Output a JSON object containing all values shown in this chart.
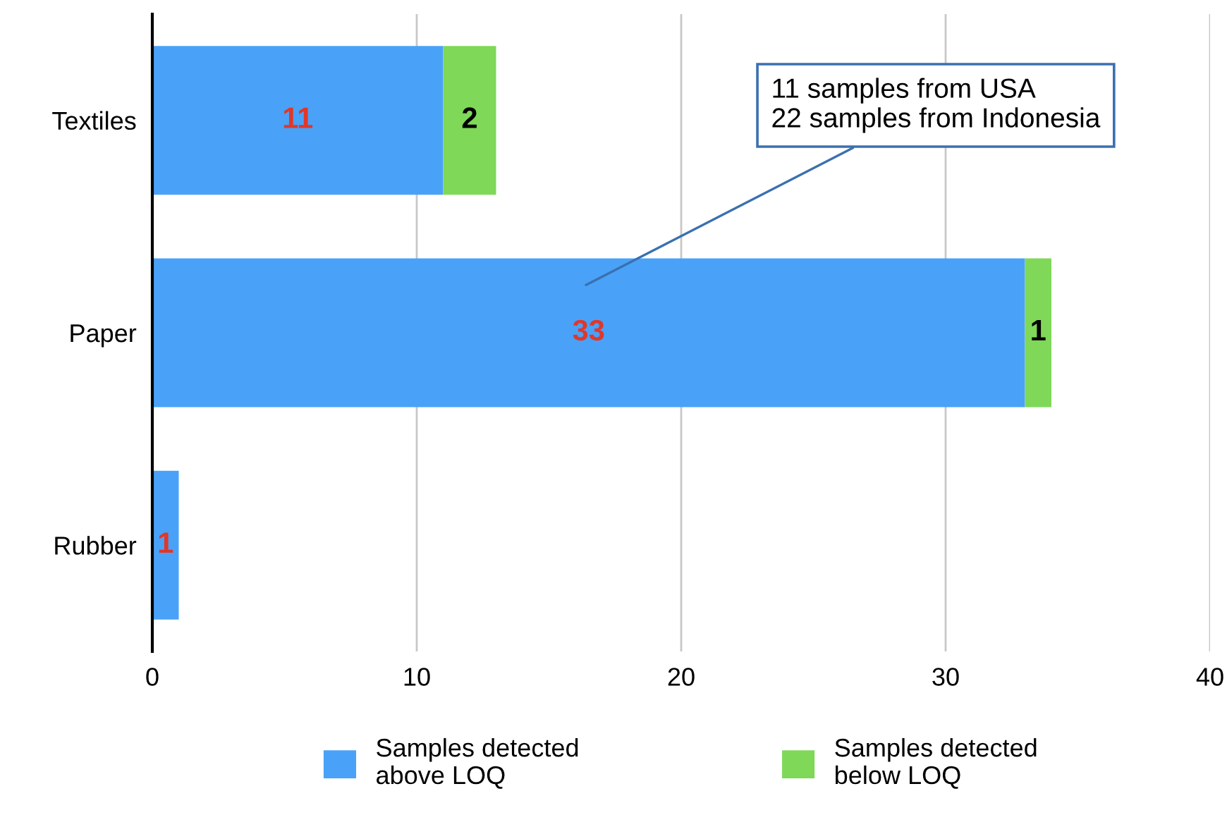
{
  "chart_data": {
    "type": "bar",
    "orientation": "horizontal",
    "stacked": true,
    "categories": [
      "Textiles",
      "Paper",
      "Rubber"
    ],
    "series": [
      {
        "name": "Samples detected\nabove LOQ",
        "color": "#49a2f7",
        "values": [
          11,
          33,
          1
        ]
      },
      {
        "name": "Samples detected\nbelow LOQ",
        "color": "#7fd858",
        "values": [
          2,
          1,
          null
        ]
      }
    ],
    "xlim": [
      0,
      40
    ],
    "xticks": [
      0,
      10,
      20,
      30,
      40
    ],
    "grid": "x",
    "legend": "bottom",
    "data_labels": true,
    "annotations": [
      "11 samples from USA\n22 samples from Indonesia"
    ]
  }
}
